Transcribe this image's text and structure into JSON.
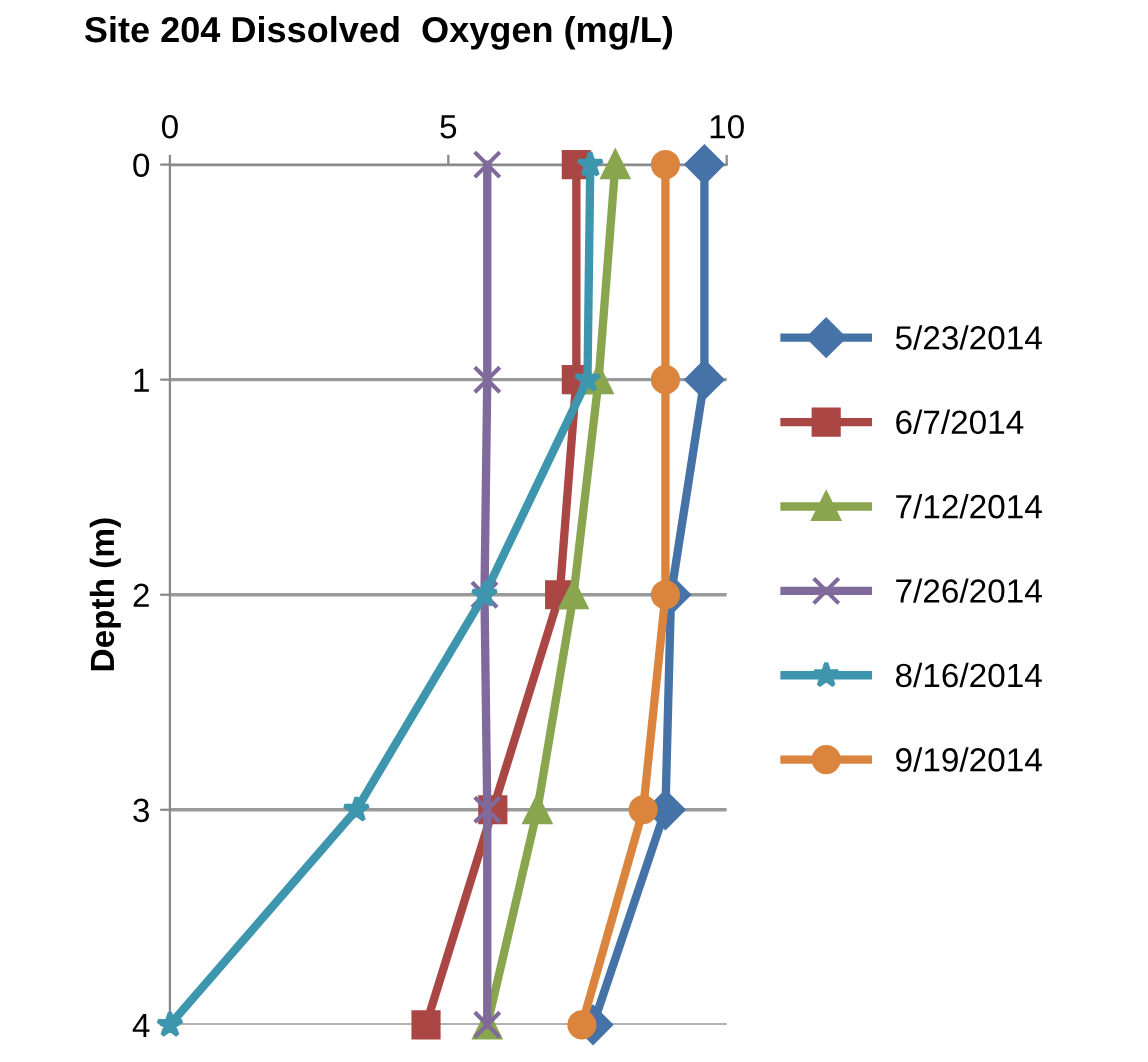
{
  "chart_data": {
    "type": "line",
    "title": "Site 204 Dissolved  Oxygen (mg/L)",
    "ylabel": "Depth (m)",
    "xlim": [
      0,
      10
    ],
    "xticks": [
      0,
      5,
      10
    ],
    "ylim": [
      4,
      0
    ],
    "yticks": [
      0,
      1,
      2,
      3,
      4
    ],
    "grid": "y",
    "legend": "right",
    "series": [
      {
        "name": "5/23/2014",
        "color": "#4572a7",
        "marker": "diamond",
        "x": [
          9.6,
          9.6,
          9.0,
          8.9,
          7.6
        ],
        "values": [
          0,
          1,
          2,
          3,
          4
        ]
      },
      {
        "name": "6/7/2014",
        "color": "#aa4643",
        "marker": "square",
        "x": [
          7.3,
          7.3,
          7.0,
          5.8,
          4.6
        ],
        "values": [
          0,
          1,
          2,
          3,
          4
        ]
      },
      {
        "name": "7/12/2014",
        "color": "#89a54e",
        "marker": "triangle",
        "x": [
          8.0,
          7.7,
          7.25,
          6.6,
          5.7
        ],
        "values": [
          0,
          1,
          2,
          3,
          4
        ]
      },
      {
        "name": "7/26/2014",
        "color": "#80699b",
        "marker": "cross",
        "x": [
          5.7,
          5.7,
          5.65,
          5.7,
          5.7
        ],
        "values": [
          0,
          1,
          2,
          3,
          4
        ]
      },
      {
        "name": "8/16/2014",
        "color": "#3d96ae",
        "marker": "star",
        "x": [
          7.55,
          7.5,
          5.65,
          3.35,
          0
        ],
        "values": [
          0,
          1,
          2,
          3,
          4
        ]
      },
      {
        "name": "9/19/2014",
        "color": "#db843d",
        "marker": "circle",
        "x": [
          8.9,
          8.9,
          8.9,
          8.5,
          7.4
        ],
        "values": [
          0,
          1,
          2,
          3,
          4
        ]
      }
    ]
  }
}
